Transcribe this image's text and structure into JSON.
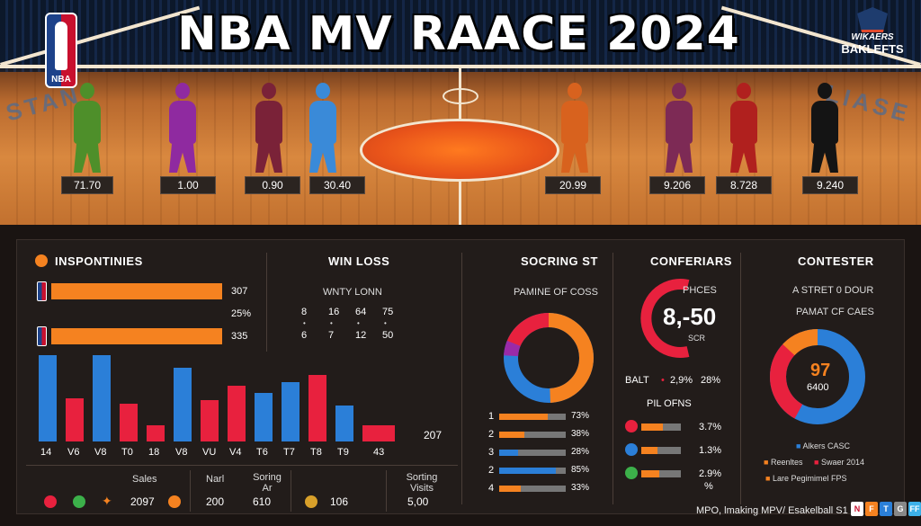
{
  "header": {
    "title": "NBA MV RAACE 2024",
    "nba_logo_text": "NBA",
    "corner_logo": {
      "line1": "WIKAERS",
      "line2": "BAKLEFTS"
    },
    "court_wing_left": "STAN",
    "court_wing_right": "LIASE"
  },
  "players": [
    {
      "score": "71.70",
      "color": "#4e8f2a"
    },
    {
      "score": "1.00",
      "color": "#8f2aa0"
    },
    {
      "score": "0.90",
      "color": "#7a2238"
    },
    {
      "score": "30.40",
      "color": "#3a8ad8"
    },
    {
      "score": "20.99",
      "color": "#d8621e"
    },
    {
      "score": "9.206",
      "color": "#7d2a55"
    },
    {
      "score": "8.728",
      "color": "#b0201e"
    },
    {
      "score": "9.240",
      "color": "#141414"
    }
  ],
  "insponties": {
    "title": "INSPONTINIES",
    "bars": [
      {
        "value": "307",
        "fraction": 0.95
      },
      {
        "value": "335",
        "fraction": 0.95
      }
    ],
    "mid_label": "25%",
    "vbar_labels": [
      "14",
      "V6",
      "V8",
      "T0",
      "18",
      "V8",
      "VU",
      "V4",
      "T6",
      "T7",
      "T8",
      "T9",
      "43"
    ],
    "end_value": "207"
  },
  "win_loss": {
    "title": "WIN LOSS",
    "subtitle": "WNTY LONN",
    "row1": [
      "8",
      "16",
      "64",
      "75"
    ],
    "row2": [
      "6",
      "7",
      "12",
      "50"
    ]
  },
  "scoring": {
    "title": "SOCRING ST",
    "subtitle": "PAMINE OF COSS",
    "rows": [
      {
        "n": "1",
        "value": "73%"
      },
      {
        "n": "2",
        "value": "38%"
      },
      {
        "n": "3",
        "value": "28%"
      },
      {
        "n": "2",
        "value": "85%"
      },
      {
        "n": "4",
        "value": "33%"
      }
    ]
  },
  "conferiars": {
    "title": "CONFERIARS",
    "gauge_label": "PHCES",
    "gauge_value": "8,-50",
    "gauge_sub": "SCR",
    "stat1_label": "BALT",
    "stat1_v1": "2,9%",
    "stat1_v2": "28%",
    "stat2_label": "PIL OFNS",
    "rows": [
      {
        "value": "3.7%"
      },
      {
        "value": "1.3%"
      },
      {
        "value": "2.9%"
      }
    ],
    "rows_extra": "%"
  },
  "contester": {
    "title": "CONTESTER",
    "sub1": "A STRET 0 DOUR",
    "sub2": "PAMAT CF CAES",
    "donut_value": "97",
    "donut_sub": "6400",
    "legend": [
      {
        "label": "Alkers CASC"
      },
      {
        "label": "Reenltes"
      },
      {
        "label": "Swaer 2014"
      },
      {
        "label": "Lare Pegimimel FPS"
      }
    ]
  },
  "footer_stats": {
    "col1": {
      "label": "Sales",
      "value": "2097"
    },
    "col2": {
      "label": "Narl",
      "value": "200"
    },
    "col3": {
      "label": "Soring Ar",
      "value": "610"
    },
    "col4": {
      "label": "",
      "value": "106"
    },
    "col5": {
      "label": "Sorting Visits",
      "value": "5,00"
    }
  },
  "caption": "MPO, lmaking MPV/ Esakelball S1"
}
